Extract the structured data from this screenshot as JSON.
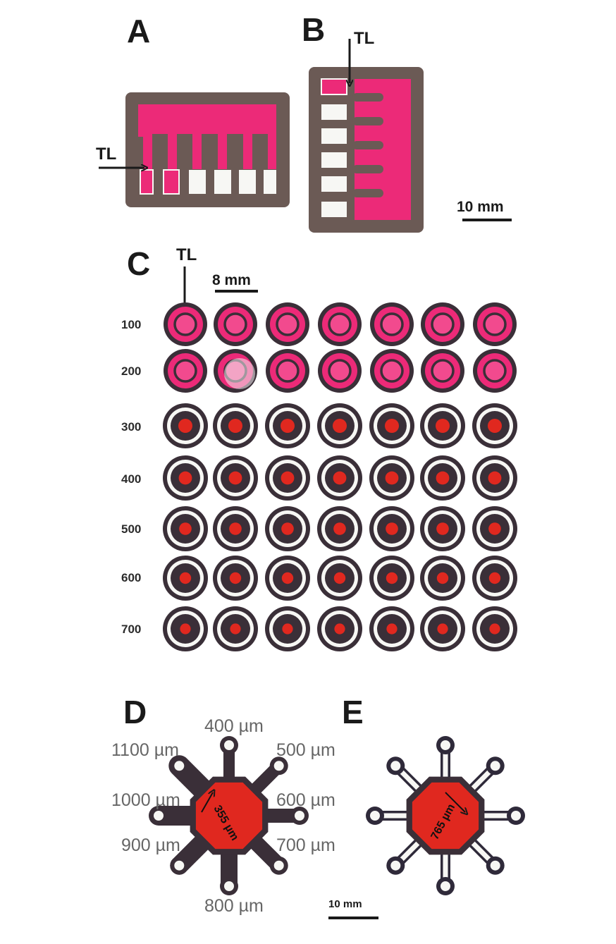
{
  "colors": {
    "pink": "#ec2a78",
    "pink_light": "#f24a8e",
    "red": "#e0281f",
    "wax": "#6b5a55",
    "ring_dark": "#3a2f38",
    "white": "#f7f7f4"
  },
  "panels": {
    "A": {
      "label": "A",
      "tl": "TL"
    },
    "B": {
      "label": "B",
      "tl": "TL",
      "scale": "10 mm"
    },
    "C": {
      "label": "C",
      "tl": "TL",
      "scale": "8 mm",
      "rows": [
        "100",
        "200",
        "300",
        "400",
        "500",
        "600",
        "700"
      ]
    },
    "D": {
      "label": "D",
      "channels": [
        "400 µm",
        "500 µm",
        "600 µm",
        "700 µm",
        "800 µm",
        "900 µm",
        "1000 µm",
        "1100 µm"
      ],
      "measurement": "355 µm",
      "scale": "10 mm"
    },
    "E": {
      "label": "E",
      "measurement": "765 µm"
    }
  }
}
